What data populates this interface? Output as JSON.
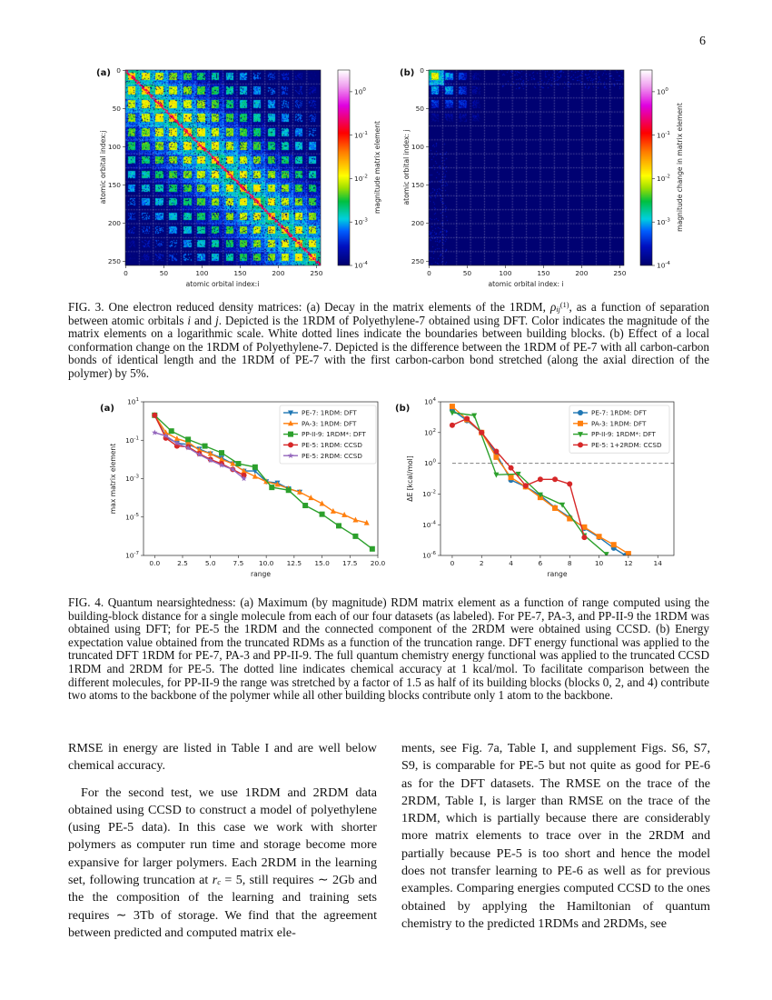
{
  "page_number": "6",
  "fig3": {
    "panels": [
      {
        "label": "(a)",
        "xlabel": "atomic orbital index:i",
        "ylabel": "atomic orbital index:j",
        "ticks": [
          "0",
          "50",
          "100",
          "150",
          "200",
          "250"
        ],
        "colorbar": {
          "label": "magnitude matrix element",
          "tick_exponents": [
            "0",
            "-1",
            "-2",
            "-3",
            "-4"
          ]
        }
      },
      {
        "label": "(b)",
        "xlabel": "atomic orbital index: i",
        "ylabel": "atomic orbital index: j",
        "ticks": [
          "0",
          "50",
          "100",
          "150",
          "200",
          "250"
        ],
        "colorbar": {
          "label": "magnitude change in matrix element",
          "tick_exponents": [
            "0",
            "-1",
            "-2",
            "-3",
            "-4"
          ]
        }
      }
    ],
    "colormap": [
      "#00006a",
      "#0010c0",
      "#0060ff",
      "#00d0e0",
      "#00c040",
      "#a0e000",
      "#ffff00",
      "#ff8000",
      "#ff0000",
      "#e000e0",
      "#f0a0f0",
      "#ffffff"
    ],
    "caption": [
      {
        "k": "t",
        "v": "FIG. 3. One electron reduced density matrices: (a) Decay in the matrix elements of the 1RDM, "
      },
      {
        "k": "i",
        "v": "ρ"
      },
      {
        "k": "sub",
        "v": "ij"
      },
      {
        "k": "sup",
        "v": "(1)"
      },
      {
        "k": "t",
        "v": ", as a function of separation between atomic orbitals "
      },
      {
        "k": "i",
        "v": "i"
      },
      {
        "k": "t",
        "v": " and "
      },
      {
        "k": "i",
        "v": "j"
      },
      {
        "k": "t",
        "v": ". Depicted is the 1RDM of Polyethylene-7 obtained using DFT. Color indicates the magnitude of the matrix elements on a logarithmic scale. White dotted lines indicate the boundaries between building blocks. (b) Effect of a local conformation change on the 1RDM of Polyethylene-7. Depicted is the difference between the 1RDM of PE-7 with all carbon-carbon bonds of identical length and the 1RDM of PE-7 with the first carbon-carbon bond stretched (along the axial direction of the polymer) by 5%."
      }
    ]
  },
  "fig4": {
    "caption": [
      {
        "k": "t",
        "v": "FIG. 4. Quantum nearsightedness: (a) Maximum (by magnitude) RDM matrix element as a function of range computed using the building-block distance for a single molecule from each of our four datasets (as labeled). For PE-7, PA-3, and PP-II-9 the 1RDM was obtained using DFT; for PE-5 the 1RDM and the connected component of the 2RDM were obtained using CCSD. (b) Energy expectation value obtained from the truncated RDMs as a function of the truncation range. DFT energy functional was applied to the truncated DFT 1RDM for PE-7, PA-3 and PP-II-9. The full quantum chemistry energy functional was applied to the truncated CCSD 1RDM and 2RDM for PE-5. The dotted line indicates chemical accuracy at 1 kcal/mol. To facilitate comparison between the different molecules, for PP-II-9 the range was stretched by a factor of 1.5 as half of its building blocks (blocks 0, 2, and 4) contribute two atoms to the backbone of the polymer while all other building blocks contribute only 1 atom to the backbone."
      }
    ]
  },
  "chart_data": [
    {
      "type": "line",
      "panel_label": "(a)",
      "xlabel": "range",
      "ylabel": "max matrix element",
      "yscale": "log",
      "xlim": [
        -1,
        20
      ],
      "ylim": [
        1e-07,
        10
      ],
      "xticks": [
        "0.0",
        "2.5",
        "5.0",
        "7.5",
        "10.0",
        "12.5",
        "15.0",
        "17.5",
        "20.0"
      ],
      "ytick_exponents": [
        "1",
        "-1",
        "-3",
        "-5",
        "-7"
      ],
      "legend": "top-right",
      "series": [
        {
          "name": "PE-7: 1RDM: DFT",
          "color": "#1f77b4",
          "marker": "triangle-down",
          "x": [
            0,
            1,
            2,
            3,
            4,
            5,
            6,
            7,
            8,
            9,
            10,
            11,
            12,
            13
          ],
          "y": [
            2,
            0.15,
            0.07,
            0.06,
            0.035,
            0.02,
            0.012,
            0.006,
            0.0025,
            0.0025,
            0.0007,
            0.0006,
            0.0003,
            0.0002
          ]
        },
        {
          "name": "PA-3: 1RDM: DFT",
          "color": "#ff7f0e",
          "marker": "triangle-up",
          "x": [
            0,
            1,
            2,
            3,
            4,
            5,
            6,
            7,
            8,
            9,
            10,
            11,
            12,
            13,
            14,
            15,
            16,
            17,
            18,
            19
          ],
          "y": [
            2,
            0.25,
            0.12,
            0.08,
            0.03,
            0.02,
            0.01,
            0.006,
            0.0025,
            0.0013,
            0.0007,
            0.0005,
            0.0003,
            0.0002,
            0.0001,
            5e-05,
            2e-05,
            1.3e-05,
            7e-06,
            5e-06
          ]
        },
        {
          "name": "PP-II-9: 1RDM*: DFT",
          "color": "#2ca02c",
          "marker": "square",
          "x": [
            0,
            1.5,
            3,
            4.5,
            6,
            7.5,
            9,
            10.5,
            12,
            13.5,
            15,
            16.5,
            18,
            19.5
          ],
          "y": [
            2,
            0.3,
            0.11,
            0.05,
            0.022,
            0.006,
            0.004,
            0.00035,
            0.00025,
            4e-05,
            1.4e-05,
            3.5e-06,
            1e-06,
            2.2e-07
          ]
        },
        {
          "name": "PE-5: 1RDM: CCSD",
          "color": "#d62728",
          "marker": "circle",
          "x": [
            0,
            1,
            2,
            3,
            4,
            5,
            6,
            7,
            8
          ],
          "y": [
            2,
            0.13,
            0.05,
            0.045,
            0.02,
            0.01,
            0.006,
            0.003,
            0.0015
          ]
        },
        {
          "name": "PE-5: 2RDM: CCSD",
          "color": "#9467bd",
          "marker": "star",
          "x": [
            0,
            1,
            2,
            3,
            4,
            5,
            6,
            7,
            8
          ],
          "y": [
            0.25,
            0.17,
            0.07,
            0.04,
            0.018,
            0.009,
            0.005,
            0.003,
            0.001
          ]
        }
      ]
    },
    {
      "type": "line",
      "panel_label": "(b)",
      "xlabel": "range",
      "ylabel": "ΔE [kcal/mol]",
      "yscale": "log",
      "xlim": [
        -0.8,
        15.1
      ],
      "ylim": [
        1e-06,
        10000
      ],
      "xticks": [
        "0",
        "2",
        "4",
        "6",
        "8",
        "10",
        "12",
        "14"
      ],
      "ytick_exponents": [
        "4",
        "2",
        "0",
        "-2",
        "-4",
        "-6"
      ],
      "legend": "top-right",
      "reference_line": {
        "y": 1,
        "style": "dashed",
        "color": "#808080"
      },
      "series": [
        {
          "name": "PE-7: 1RDM: DFT",
          "color": "#1f77b4",
          "marker": "circle",
          "x": [
            0,
            1,
            2,
            3,
            4,
            5,
            6,
            7,
            8,
            9,
            10,
            11,
            11.8
          ],
          "y": [
            3000,
            600,
            100,
            4,
            0.08,
            0.03,
            0.008,
            0.0013,
            0.0003,
            6e-05,
            1.5e-05,
            3e-06,
            1e-06
          ]
        },
        {
          "name": "PA-3: 1RDM: DFT",
          "color": "#ff7f0e",
          "marker": "square",
          "x": [
            0,
            1,
            2,
            3,
            4,
            5,
            6,
            7,
            8,
            9,
            10,
            11,
            12
          ],
          "y": [
            5000,
            700,
            100,
            2.5,
            0.12,
            0.03,
            0.006,
            0.0012,
            0.00025,
            7e-05,
            1.7e-05,
            5e-06,
            1.3e-06
          ]
        },
        {
          "name": "PP-II-9: 1RDM*: DFT",
          "color": "#2ca02c",
          "marker": "triangle-down",
          "x": [
            0,
            1.5,
            3,
            4.5,
            6,
            7.5,
            9,
            10.5
          ],
          "y": [
            2000,
            1300,
            0.18,
            0.2,
            0.009,
            0.002,
            2e-05,
            1.2e-06
          ]
        },
        {
          "name": "PE-5: 1+2RDM: CCSD",
          "color": "#d62728",
          "marker": "circle",
          "x": [
            0,
            1,
            2,
            3,
            4,
            5,
            6,
            7,
            8,
            9
          ],
          "y": [
            300,
            800,
            100,
            6,
            0.5,
            0.035,
            0.09,
            0.09,
            0.045,
            1.5e-05
          ]
        }
      ]
    }
  ],
  "body": {
    "left_p1": "RMSE in energy are listed in Table I and are well below chemical accuracy.",
    "left_p2a": "For the second test, we use 1RDM and 2RDM data obtained using CCSD to construct a model of polyethylene (using PE-5 data). In this case we work with shorter polymers as computer run time and storage become more expansive for larger polymers. Each 2RDM in the learning set, following truncation at ",
    "left_p2_var": "r",
    "left_p2_sub": "c",
    "left_p2b": " = 5, still requires ∼ 2Gb and the the composition of the learning and training sets requires ∼ 3Tb of storage.  We find that the agreement between predicted and computed matrix ele-",
    "right_p1": "ments, see Fig. 7a, Table I, and supplement Figs. S6, S7, S9, is comparable for PE-5 but not quite as good for PE-6 as for the DFT datasets. The RMSE on the trace of the 2RDM, Table I, is larger than RMSE on the trace of the 1RDM, which is partially because there are considerably more matrix elements to trace over in the 2RDM and partially because PE-5 is too short and hence the model does not transfer learning to PE-6 as well as for previous examples. Comparing energies computed CCSD to the ones obtained by applying the Hamiltonian of quantum chemistry to the predicted 1RDMs and 2RDMs, see"
  }
}
